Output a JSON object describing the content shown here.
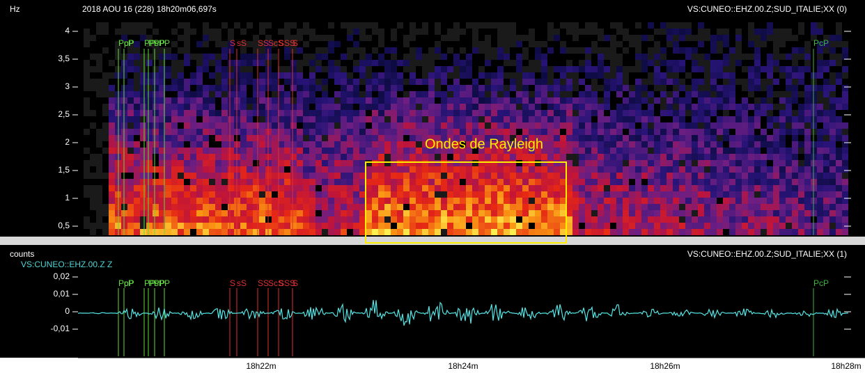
{
  "top_panel": {
    "unit": "Hz",
    "header": "2018 AOU 16 (228)  18h20m06,697s",
    "channel": "VS:CUNEO::EHZ.00.Z;SUD_ITALIE;XX (0)",
    "yticks": [
      "4",
      "3,5",
      "3",
      "2,5",
      "2",
      "1,5",
      "1",
      "0,5"
    ],
    "annotation": "Ondes de Rayleigh",
    "p_picks": [
      "PcP",
      "pP",
      "PP",
      "PPP",
      "sP",
      "P"
    ],
    "s_picks": [
      "S",
      "sS",
      "SS",
      "ScS",
      "SSS",
      "S"
    ],
    "end_pick": "PcP"
  },
  "bottom_panel": {
    "unit": "counts",
    "channel": "VS:CUNEO::EHZ.00.Z;SUD_ITALIE;XX (1)",
    "trace_label": "VS:CUNEO::EHZ.00.Z Z",
    "yticks": [
      "0,02",
      "0,01",
      "0",
      "-0,01"
    ],
    "p_picks": [
      "PcP",
      "pP",
      "PP",
      "PPP",
      "sP",
      "P"
    ],
    "s_picks": [
      "S",
      "sS",
      "SS",
      "ScS",
      "SSS",
      "S"
    ],
    "end_pick": "PcP"
  },
  "time_axis": [
    "18h22m",
    "18h24m",
    "18h26m",
    "18h28m"
  ]
}
